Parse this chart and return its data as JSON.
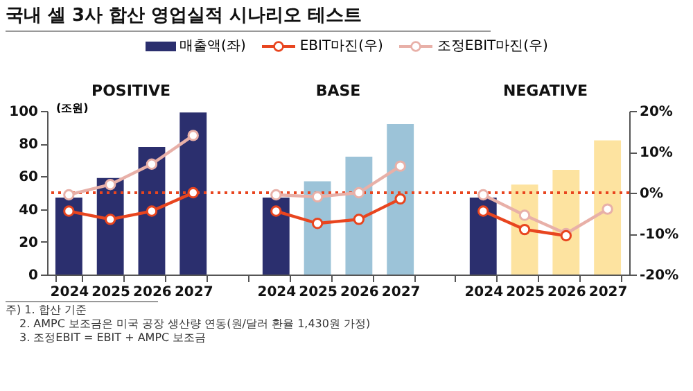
{
  "chart_data": {
    "type": "bar",
    "title": "국내 셀 3사 합산 영업실적 시나리오 테스트",
    "ylabel": "(조원)",
    "categories": [
      "2024",
      "2025",
      "2026",
      "2027",
      null,
      "2024",
      "2025",
      "2026",
      "2027",
      null,
      "2024",
      "2025",
      "2026",
      "2027"
    ],
    "series": [
      {
        "name": "매출액(좌)",
        "color": "#2b2f6e",
        "values": [
          47,
          59,
          78,
          99,
          null,
          47,
          57,
          72,
          92,
          null,
          47,
          55,
          64,
          82
        ],
        "colors": [
          "#2b2f6e",
          "#2b2f6e",
          "#2b2f6e",
          "#2b2f6e",
          null,
          "#2b2f6e",
          "#9cc3d8",
          "#9cc3d8",
          "#9cc3d8",
          null,
          "#2b2f6e",
          "#fde3a0",
          "#fde3a0",
          "#fde3a0"
        ]
      },
      {
        "name": "EBIT마진(우)",
        "type": "line",
        "axis": "y2",
        "color": "#e8451f",
        "values": [
          -4.5,
          -6.5,
          -4.5,
          0,
          null,
          -4.5,
          -7.5,
          -6.5,
          -1.5,
          null,
          -4.5,
          -9,
          -10.5,
          null
        ]
      },
      {
        "name": "조정EBIT마진(우)",
        "type": "line",
        "axis": "y2",
        "color": "#e8b0a8",
        "values": [
          -0.5,
          2,
          7,
          14,
          null,
          -0.5,
          -1,
          0,
          6.5,
          null,
          -0.5,
          -5.5,
          -10,
          -4
        ]
      }
    ],
    "ylim": [
      0,
      100
    ],
    "yticks": [
      0,
      20,
      40,
      60,
      80,
      100
    ],
    "y2lim": [
      -20,
      20
    ],
    "y2ticks": [
      {
        "value": -20,
        "label": "-20%"
      },
      {
        "value": -10,
        "label": "-10%"
      },
      {
        "value": 0,
        "label": "0%"
      },
      {
        "value": 10,
        "label": "10%"
      },
      {
        "value": 20,
        "label": "20%"
      }
    ],
    "ref_lines": [
      {
        "axis": "y2",
        "value": 0,
        "color": "#e8451f",
        "line_style": "dotted"
      }
    ],
    "legend": "top",
    "marker": "circle",
    "line_style": "solid",
    "annotations": [
      "POSITIVE",
      "BASE",
      "NEGATIVE",
      "주) 1. 합산 기준",
      "2. AMPC 보조금은 미국 공장 생산량 연동(원/달러 환율 1,430원 가정)",
      "3. 조정EBIT = EBIT + AMPC 보조금"
    ]
  }
}
